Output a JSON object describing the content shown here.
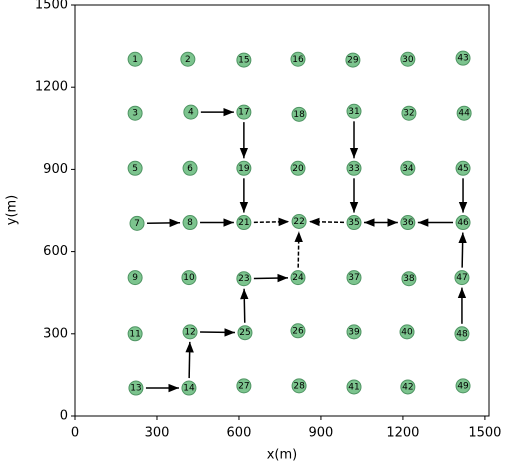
{
  "chart_data": {
    "type": "scatter",
    "xlabel": "x(m)",
    "ylabel": "y(m)",
    "xlim": [
      0,
      1515
    ],
    "ylim": [
      0,
      1500
    ],
    "xticks": [
      0,
      300,
      600,
      900,
      1200,
      1500
    ],
    "yticks": [
      0,
      300,
      600,
      900,
      1200,
      1500
    ],
    "color": "#7cc48e",
    "edgecolor": "#4f9463",
    "labels": [
      1,
      2,
      15,
      16,
      29,
      30,
      43,
      3,
      4,
      17,
      18,
      31,
      32,
      44,
      5,
      6,
      19,
      20,
      33,
      34,
      45,
      7,
      8,
      21,
      22,
      35,
      36,
      46,
      9,
      10,
      23,
      24,
      37,
      38,
      47,
      11,
      12,
      25,
      26,
      39,
      40,
      48,
      13,
      14,
      27,
      28,
      41,
      42,
      49
    ],
    "x": [
      220,
      413,
      618,
      816,
      1017,
      1218,
      1420,
      220,
      424,
      618,
      820,
      1021,
      1222,
      1424,
      220,
      421,
      618,
      816,
      1021,
      1218,
      1420,
      227,
      421,
      618,
      820,
      1021,
      1218,
      1420,
      220,
      417,
      618,
      816,
      1021,
      1222,
      1416,
      220,
      421,
      622,
      816,
      1021,
      1215,
      1416,
      223,
      417,
      618,
      820,
      1021,
      1218,
      1420
    ],
    "y": [
      1302,
      1302,
      1299,
      1302,
      1299,
      1302,
      1306,
      1105,
      1109,
      1109,
      1101,
      1112,
      1105,
      1105,
      904,
      904,
      904,
      904,
      904,
      904,
      904,
      703,
      706,
      706,
      710,
      706,
      706,
      706,
      505,
      505,
      501,
      505,
      505,
      501,
      505,
      300,
      307,
      304,
      311,
      307,
      307,
      300,
      102,
      102,
      110,
      110,
      106,
      106,
      110
    ],
    "edges": [
      {
        "from": 13,
        "to": 14
      },
      {
        "from": 14,
        "to": 12
      },
      {
        "from": 12,
        "to": 25
      },
      {
        "from": 25,
        "to": 23
      },
      {
        "from": 23,
        "to": 24
      },
      {
        "from": 24,
        "to": 22,
        "dashed": true
      },
      {
        "from": 7,
        "to": 8
      },
      {
        "from": 8,
        "to": 21
      },
      {
        "from": 21,
        "to": 22,
        "dashed": true
      },
      {
        "from": 4,
        "to": 17
      },
      {
        "from": 17,
        "to": 19
      },
      {
        "from": 19,
        "to": 21
      },
      {
        "from": 31,
        "to": 33
      },
      {
        "from": 33,
        "to": 35
      },
      {
        "from": 35,
        "to": 22,
        "dashed": true
      },
      {
        "from": 35,
        "to": 36,
        "both": true
      },
      {
        "from": 46,
        "to": 36
      },
      {
        "from": 45,
        "to": 46
      },
      {
        "from": 47,
        "to": 46
      },
      {
        "from": 48,
        "to": 47
      }
    ]
  }
}
